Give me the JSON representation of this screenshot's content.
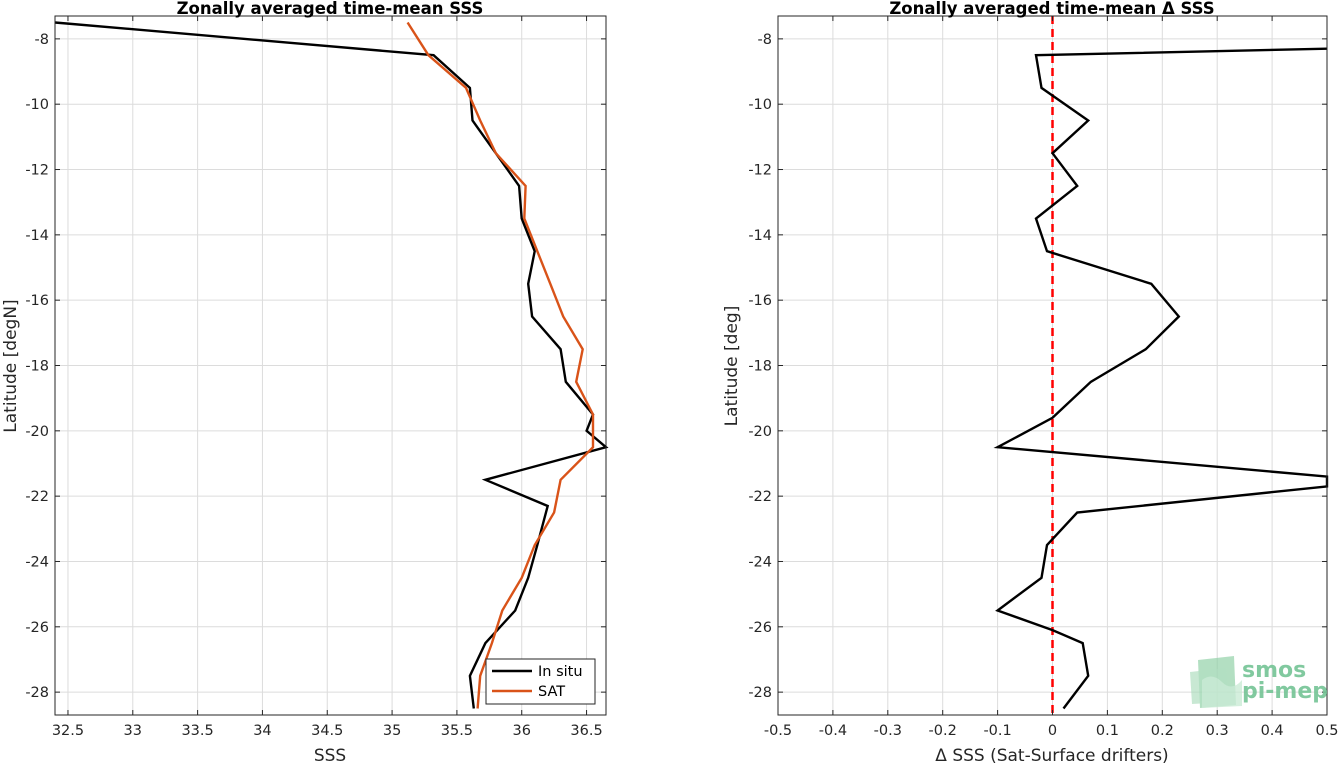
{
  "chart_data": [
    {
      "type": "line",
      "title": "Zonally averaged time-mean SSS",
      "xlabel": "SSS",
      "ylabel": "Latitude [degN]",
      "xlim": [
        32.4,
        36.65
      ],
      "ylim": [
        -28.7,
        -7.3
      ],
      "xticks": [
        32.5,
        33,
        33.5,
        34,
        34.5,
        35,
        35.5,
        36,
        36.5
      ],
      "xtick_labels": [
        "32.5",
        "33",
        "33.5",
        "34",
        "34.5",
        "35",
        "35.5",
        "36",
        "36.5"
      ],
      "yticks": [
        -8,
        -10,
        -12,
        -14,
        -16,
        -18,
        -20,
        -22,
        -24,
        -26,
        -28
      ],
      "ytick_labels": [
        "-8",
        "-10",
        "-12",
        "-14",
        "-16",
        "-18",
        "-20",
        "-22",
        "-24",
        "-26",
        "-28"
      ],
      "grid": true,
      "legend_position": "bottom-right",
      "series": [
        {
          "name": "In situ",
          "color": "#000000",
          "points": [
            [
              32.4,
              -7.5
            ],
            [
              35.32,
              -8.5
            ],
            [
              35.6,
              -9.5
            ],
            [
              35.62,
              -10.5
            ],
            [
              35.8,
              -11.5
            ],
            [
              35.98,
              -12.5
            ],
            [
              36.0,
              -13.5
            ],
            [
              36.1,
              -14.5
            ],
            [
              36.05,
              -15.5
            ],
            [
              36.08,
              -16.5
            ],
            [
              36.3,
              -17.5
            ],
            [
              36.34,
              -18.5
            ],
            [
              36.55,
              -19.5
            ],
            [
              36.5,
              -20.0
            ],
            [
              36.65,
              -20.5
            ],
            [
              35.72,
              -21.5
            ],
            [
              36.2,
              -22.3
            ],
            [
              36.12,
              -23.5
            ],
            [
              36.05,
              -24.5
            ],
            [
              35.95,
              -25.5
            ],
            [
              35.72,
              -26.5
            ],
            [
              35.6,
              -27.5
            ],
            [
              35.63,
              -28.5
            ]
          ]
        },
        {
          "name": "SAT",
          "color": "#d95319",
          "points": [
            [
              35.12,
              -7.5
            ],
            [
              35.28,
              -8.5
            ],
            [
              35.57,
              -9.5
            ],
            [
              35.68,
              -10.5
            ],
            [
              35.8,
              -11.5
            ],
            [
              36.03,
              -12.5
            ],
            [
              36.02,
              -13.5
            ],
            [
              36.12,
              -14.5
            ],
            [
              36.22,
              -15.5
            ],
            [
              36.32,
              -16.5
            ],
            [
              36.47,
              -17.5
            ],
            [
              36.42,
              -18.5
            ],
            [
              36.55,
              -19.5
            ],
            [
              36.55,
              -20.5
            ],
            [
              36.3,
              -21.5
            ],
            [
              36.25,
              -22.5
            ],
            [
              36.1,
              -23.5
            ],
            [
              36.0,
              -24.5
            ],
            [
              35.85,
              -25.5
            ],
            [
              35.77,
              -26.5
            ],
            [
              35.68,
              -27.5
            ],
            [
              35.66,
              -28.5
            ]
          ]
        }
      ]
    },
    {
      "type": "line",
      "title": "Zonally averaged time-mean Δ SSS",
      "xlabel": "Δ SSS (Sat-Surface drifters)",
      "ylabel": "Latitude [deg]",
      "xlim": [
        -0.5,
        0.5
      ],
      "ylim": [
        -28.7,
        -7.3
      ],
      "xticks": [
        -0.5,
        -0.4,
        -0.3,
        -0.2,
        -0.1,
        0,
        0.1,
        0.2,
        0.3,
        0.4,
        0.5
      ],
      "xtick_labels": [
        "-0.5",
        "-0.4",
        "-0.3",
        "-0.2",
        "-0.1",
        "0",
        "0.1",
        "0.2",
        "0.3",
        "0.4",
        "0.5"
      ],
      "yticks": [
        -8,
        -10,
        -12,
        -14,
        -16,
        -18,
        -20,
        -22,
        -24,
        -26,
        -28
      ],
      "ytick_labels": [
        "-8",
        "-10",
        "-12",
        "-14",
        "-16",
        "-18",
        "-20",
        "-22",
        "-24",
        "-26",
        "-28"
      ],
      "grid": true,
      "reference_line": {
        "x": 0,
        "color": "#ff0000",
        "style": "dashed"
      },
      "series": [
        {
          "color": "#000000",
          "points": [
            [
              0.5,
              -8.3
            ],
            [
              -0.03,
              -8.5
            ],
            [
              -0.02,
              -9.5
            ],
            [
              0.065,
              -10.5
            ],
            [
              0.0,
              -11.5
            ],
            [
              0.045,
              -12.5
            ],
            [
              -0.03,
              -13.5
            ],
            [
              -0.01,
              -14.5
            ],
            [
              0.18,
              -15.5
            ],
            [
              0.23,
              -16.5
            ],
            [
              0.17,
              -17.5
            ],
            [
              0.07,
              -18.5
            ],
            [
              0.0,
              -19.6
            ],
            [
              -0.1,
              -20.5
            ],
            [
              0.5,
              -21.4
            ],
            [
              0.5,
              -21.7
            ],
            [
              0.045,
              -22.5
            ],
            [
              -0.01,
              -23.5
            ],
            [
              -0.02,
              -24.5
            ],
            [
              -0.1,
              -25.5
            ],
            [
              0.0,
              -26.1
            ],
            [
              0.055,
              -26.5
            ],
            [
              0.065,
              -27.5
            ],
            [
              0.02,
              -28.5
            ]
          ]
        }
      ]
    }
  ],
  "watermark": {
    "line1": "smos",
    "line2": "pi-mep"
  },
  "legend": {
    "in_situ": "In situ",
    "sat": "SAT"
  }
}
